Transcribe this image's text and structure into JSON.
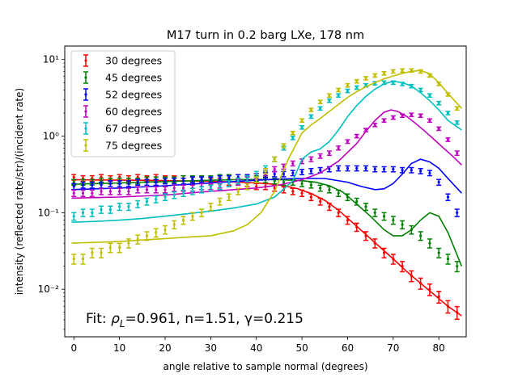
{
  "chart_data": {
    "type": "scatter",
    "title": "M17 turn in 0.2 barg LXe, 178 nm",
    "xlabel": "angle relative to sample normal (degrees)",
    "ylabel": "intensity (reflected rate/str)/(incident rate)",
    "xlim": [
      -2,
      86
    ],
    "ylim": [
      0.0024,
      15
    ],
    "yscale": "log",
    "xticks": [
      "0",
      "10",
      "20",
      "30",
      "40",
      "50",
      "60",
      "70",
      "80"
    ],
    "xtick_values": [
      0,
      10,
      20,
      30,
      40,
      50,
      60,
      70,
      80
    ],
    "yticks": [
      "10⁻²",
      "10⁻¹",
      "10⁰",
      "10¹"
    ],
    "ytick_values": [
      0.01,
      0.1,
      1,
      10
    ],
    "grid": false,
    "legend_position": "top-left",
    "annotation": {
      "prefix": "Fit: ",
      "rho": "ρ",
      "rho_sub": "L",
      "rest": "=0.961, n=1.51, γ=0.215"
    },
    "series": [
      {
        "name": "30 degrees",
        "color": "#ff0000",
        "x": [
          0,
          2,
          4,
          6,
          8,
          10,
          12,
          14,
          16,
          18,
          20,
          22,
          24,
          26,
          28,
          30,
          32,
          34,
          36,
          38,
          40,
          42,
          44,
          46,
          48,
          50,
          52,
          54,
          56,
          58,
          60,
          62,
          64,
          66,
          68,
          70,
          72,
          74,
          76,
          78,
          80,
          82,
          84
        ],
        "y": [
          0.29,
          0.28,
          0.28,
          0.29,
          0.28,
          0.29,
          0.28,
          0.29,
          0.28,
          0.29,
          0.28,
          0.28,
          0.28,
          0.27,
          0.27,
          0.26,
          0.26,
          0.25,
          0.25,
          0.24,
          0.22,
          0.22,
          0.21,
          0.2,
          0.19,
          0.18,
          0.16,
          0.14,
          0.12,
          0.1,
          0.08,
          0.065,
          0.05,
          0.04,
          0.03,
          0.025,
          0.02,
          0.015,
          0.012,
          0.01,
          0.008,
          0.006,
          0.005
        ],
        "fit": {
          "x": [
            -0.5,
            5,
            10,
            15,
            20,
            25,
            30,
            35,
            40,
            43,
            46,
            49,
            52,
            55,
            58,
            61,
            64,
            67,
            70,
            73,
            76,
            79,
            82,
            85
          ],
          "y": [
            0.27,
            0.268,
            0.266,
            0.265,
            0.263,
            0.26,
            0.257,
            0.252,
            0.245,
            0.238,
            0.226,
            0.206,
            0.178,
            0.145,
            0.108,
            0.075,
            0.052,
            0.036,
            0.025,
            0.017,
            0.012,
            0.0085,
            0.006,
            0.0045
          ]
        }
      },
      {
        "name": "45 degrees",
        "color": "#008000",
        "x": [
          0,
          2,
          4,
          6,
          8,
          10,
          12,
          14,
          16,
          18,
          20,
          22,
          24,
          26,
          28,
          30,
          32,
          34,
          36,
          38,
          40,
          42,
          44,
          46,
          48,
          50,
          52,
          54,
          56,
          58,
          60,
          62,
          64,
          66,
          68,
          70,
          72,
          74,
          76,
          78,
          80,
          82,
          84
        ],
        "y": [
          0.25,
          0.25,
          0.25,
          0.26,
          0.26,
          0.26,
          0.26,
          0.26,
          0.27,
          0.27,
          0.27,
          0.27,
          0.28,
          0.28,
          0.28,
          0.28,
          0.29,
          0.29,
          0.29,
          0.29,
          0.28,
          0.27,
          0.26,
          0.25,
          0.25,
          0.24,
          0.23,
          0.21,
          0.2,
          0.18,
          0.16,
          0.14,
          0.12,
          0.1,
          0.09,
          0.08,
          0.07,
          0.06,
          0.05,
          0.04,
          0.03,
          0.025,
          0.02
        ],
        "fit": {
          "x": [
            -0.5,
            5,
            10,
            15,
            20,
            25,
            30,
            35,
            40,
            45,
            50,
            53,
            56,
            59,
            62,
            65,
            68,
            70,
            72,
            74,
            76,
            78,
            80,
            82,
            85
          ],
          "y": [
            0.235,
            0.24,
            0.245,
            0.25,
            0.255,
            0.26,
            0.265,
            0.27,
            0.272,
            0.27,
            0.262,
            0.25,
            0.225,
            0.185,
            0.13,
            0.09,
            0.06,
            0.05,
            0.05,
            0.06,
            0.08,
            0.1,
            0.09,
            0.055,
            0.02
          ]
        }
      },
      {
        "name": "52 degrees",
        "color": "#0000ff",
        "x": [
          0,
          2,
          4,
          6,
          8,
          10,
          12,
          14,
          16,
          18,
          20,
          22,
          24,
          26,
          28,
          30,
          32,
          34,
          36,
          38,
          40,
          42,
          44,
          46,
          48,
          50,
          52,
          54,
          56,
          58,
          60,
          62,
          64,
          66,
          68,
          70,
          72,
          74,
          76,
          78,
          80,
          82,
          84
        ],
        "y": [
          0.22,
          0.23,
          0.23,
          0.23,
          0.24,
          0.24,
          0.24,
          0.25,
          0.25,
          0.25,
          0.26,
          0.26,
          0.26,
          0.27,
          0.27,
          0.27,
          0.28,
          0.28,
          0.29,
          0.29,
          0.3,
          0.31,
          0.32,
          0.32,
          0.33,
          0.34,
          0.35,
          0.36,
          0.37,
          0.38,
          0.38,
          0.38,
          0.38,
          0.37,
          0.37,
          0.37,
          0.36,
          0.36,
          0.35,
          0.33,
          0.25,
          0.16,
          0.1
        ],
        "fit": {
          "x": [
            -0.5,
            10,
            20,
            30,
            40,
            45,
            50,
            55,
            60,
            63,
            66,
            68,
            70,
            72,
            74,
            76,
            78,
            80,
            82,
            85
          ],
          "y": [
            0.2,
            0.21,
            0.225,
            0.245,
            0.265,
            0.275,
            0.28,
            0.28,
            0.25,
            0.22,
            0.2,
            0.205,
            0.24,
            0.32,
            0.44,
            0.5,
            0.46,
            0.38,
            0.28,
            0.18
          ]
        }
      },
      {
        "name": "60 degrees",
        "color": "#bf00bf",
        "x": [
          0,
          2,
          4,
          6,
          8,
          10,
          12,
          14,
          16,
          18,
          20,
          22,
          24,
          26,
          28,
          30,
          32,
          34,
          36,
          38,
          40,
          42,
          44,
          46,
          48,
          50,
          52,
          54,
          56,
          58,
          60,
          62,
          64,
          66,
          68,
          70,
          72,
          74,
          76,
          78,
          80,
          82,
          84
        ],
        "y": [
          0.18,
          0.18,
          0.18,
          0.19,
          0.19,
          0.19,
          0.19,
          0.2,
          0.2,
          0.2,
          0.2,
          0.21,
          0.21,
          0.21,
          0.22,
          0.22,
          0.23,
          0.24,
          0.25,
          0.27,
          0.3,
          0.33,
          0.37,
          0.4,
          0.44,
          0.47,
          0.5,
          0.55,
          0.6,
          0.7,
          0.85,
          1.0,
          1.2,
          1.4,
          1.6,
          1.75,
          1.85,
          1.9,
          1.85,
          1.6,
          1.25,
          0.9,
          0.6
        ],
        "fit": {
          "x": [
            -0.5,
            10,
            20,
            30,
            40,
            45,
            50,
            54,
            58,
            62,
            64,
            66,
            68,
            69.5,
            71,
            73,
            75,
            77,
            79,
            81,
            83,
            85
          ],
          "y": [
            0.155,
            0.16,
            0.17,
            0.19,
            0.21,
            0.23,
            0.27,
            0.33,
            0.47,
            0.8,
            1.15,
            1.6,
            2.05,
            2.2,
            2.1,
            1.8,
            1.45,
            1.15,
            0.9,
            0.7,
            0.55,
            0.42
          ]
        }
      },
      {
        "name": "67 degrees",
        "color": "#00bfbf",
        "x": [
          0,
          2,
          4,
          6,
          8,
          10,
          12,
          14,
          16,
          18,
          20,
          22,
          24,
          26,
          28,
          30,
          32,
          34,
          36,
          38,
          40,
          42,
          44,
          46,
          48,
          50,
          52,
          54,
          56,
          58,
          60,
          62,
          64,
          66,
          68,
          70,
          72,
          74,
          76,
          78,
          80,
          82,
          84
        ],
        "y": [
          0.09,
          0.1,
          0.1,
          0.11,
          0.11,
          0.12,
          0.12,
          0.13,
          0.14,
          0.15,
          0.16,
          0.17,
          0.18,
          0.19,
          0.2,
          0.21,
          0.22,
          0.24,
          0.26,
          0.28,
          0.32,
          0.38,
          0.5,
          0.7,
          0.95,
          1.3,
          1.8,
          2.3,
          2.9,
          3.4,
          3.9,
          4.3,
          4.6,
          4.9,
          5.0,
          5.0,
          4.8,
          4.5,
          4.0,
          3.4,
          2.7,
          2.0,
          1.5
        ],
        "fit": {
          "x": [
            -0.5,
            5,
            10,
            15,
            20,
            25,
            30,
            35,
            40,
            44,
            48,
            50,
            52,
            54,
            56,
            58,
            60,
            62,
            64,
            66,
            68,
            70,
            72,
            74,
            76,
            78,
            80,
            82,
            85
          ],
          "y": [
            0.075,
            0.077,
            0.08,
            0.084,
            0.09,
            0.097,
            0.105,
            0.115,
            0.13,
            0.16,
            0.26,
            0.5,
            0.62,
            0.68,
            0.85,
            1.2,
            1.8,
            2.5,
            3.3,
            4.1,
            4.8,
            5.2,
            5.0,
            4.5,
            3.7,
            2.9,
            2.2,
            1.6,
            1.2
          ]
        }
      },
      {
        "name": "75 degrees",
        "color": "#bfbf00",
        "x": [
          0,
          2,
          4,
          6,
          8,
          10,
          12,
          14,
          16,
          18,
          20,
          22,
          24,
          26,
          28,
          30,
          32,
          34,
          36,
          38,
          40,
          42,
          44,
          46,
          48,
          50,
          52,
          54,
          56,
          58,
          60,
          62,
          64,
          66,
          68,
          70,
          72,
          74,
          76,
          78,
          80,
          82,
          84
        ],
        "y": [
          0.025,
          0.025,
          0.03,
          0.03,
          0.035,
          0.035,
          0.04,
          0.045,
          0.05,
          0.055,
          0.06,
          0.07,
          0.08,
          0.09,
          0.1,
          0.12,
          0.14,
          0.16,
          0.19,
          0.22,
          0.27,
          0.35,
          0.5,
          0.75,
          1.1,
          1.6,
          2.2,
          2.8,
          3.4,
          4.0,
          4.6,
          5.2,
          5.7,
          6.2,
          6.6,
          7.0,
          7.2,
          7.2,
          7.0,
          6.2,
          4.8,
          3.5,
          2.3
        ],
        "fit": {
          "x": [
            -0.5,
            5,
            10,
            15,
            20,
            25,
            30,
            35,
            38,
            41,
            44,
            47,
            50,
            52,
            54,
            56,
            58,
            60,
            62,
            64,
            66,
            68,
            70,
            72,
            74,
            76,
            78,
            80,
            82,
            85
          ],
          "y": [
            0.04,
            0.041,
            0.042,
            0.044,
            0.046,
            0.048,
            0.05,
            0.058,
            0.07,
            0.1,
            0.19,
            0.5,
            1.1,
            1.4,
            1.7,
            2.1,
            2.6,
            3.2,
            3.8,
            4.4,
            5.0,
            5.6,
            6.1,
            6.6,
            7.0,
            7.2,
            6.5,
            5.0,
            3.6,
            2.3
          ]
        }
      }
    ]
  }
}
